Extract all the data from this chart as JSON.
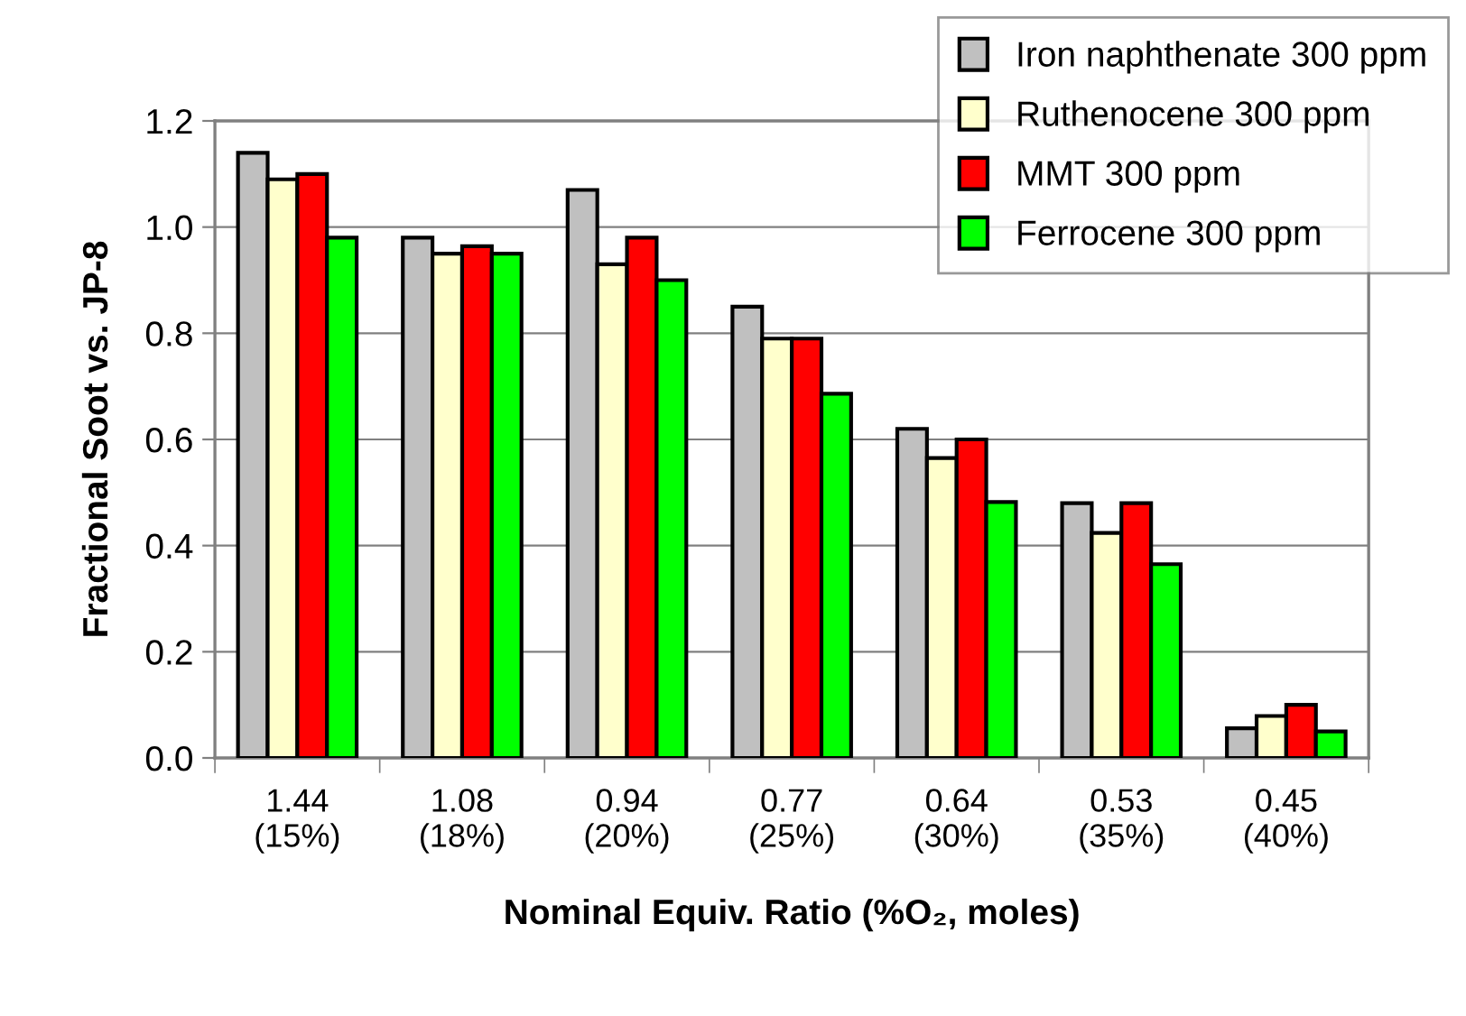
{
  "chart_data": {
    "type": "bar",
    "categories": [
      "1.44\n(15%)",
      "1.08\n(18%)",
      "0.94\n(20%)",
      "0.77\n(25%)",
      "0.64\n(30%)",
      "0.53\n(35%)",
      "0.45\n(40%)"
    ],
    "series": [
      {
        "name": "Iron naphthenate 300 ppm",
        "color": "#c0c0c0",
        "values": [
          1.14,
          0.98,
          1.07,
          0.85,
          0.62,
          0.48,
          0.056
        ]
      },
      {
        "name": "Ruthenocene 300 ppm",
        "color": "#ffffcc",
        "values": [
          1.09,
          0.95,
          0.93,
          0.79,
          0.565,
          0.424,
          0.079
        ]
      },
      {
        "name": "MMT 300 ppm",
        "color": "#ff0000",
        "values": [
          1.1,
          0.964,
          0.98,
          0.79,
          0.6,
          0.48,
          0.1
        ]
      },
      {
        "name": "Ferrocene 300 ppm",
        "color": "#00ff00",
        "values": [
          0.98,
          0.95,
          0.9,
          0.686,
          0.482,
          0.365,
          0.05
        ]
      }
    ],
    "xlabel": "Nominal Equiv. Ratio (%O₂, moles)",
    "ylabel": "Fractional Soot vs. JP-8",
    "ylim": [
      0.0,
      1.2
    ],
    "yticks": [
      {
        "value": 0.0,
        "label": "0.0"
      },
      0.2,
      0.4,
      0.6,
      0.8,
      {
        "value": 1.0,
        "label": "1.0"
      },
      1.2
    ],
    "grid": "y",
    "legend": "top right"
  }
}
